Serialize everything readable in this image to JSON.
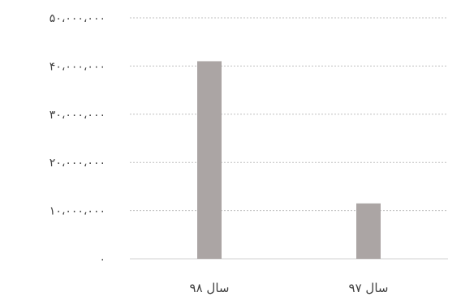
{
  "chart_data": {
    "type": "bar",
    "categories": [
      "سال ۹۸",
      "سال ۹۷"
    ],
    "values": [
      41000000,
      11500000
    ],
    "ylim": [
      0,
      50000000
    ],
    "yticks": [
      0,
      10000000,
      20000000,
      30000000,
      40000000,
      50000000
    ],
    "ytick_labels": [
      "۰",
      "۱۰،۰۰۰،۰۰۰",
      "۲۰،۰۰۰،۰۰۰",
      "۳۰،۰۰۰،۰۰۰",
      "۴۰،۰۰۰،۰۰۰",
      "۵۰،۰۰۰،۰۰۰"
    ],
    "grid": true,
    "legend": "none",
    "bar_color": "#aba5a4"
  }
}
